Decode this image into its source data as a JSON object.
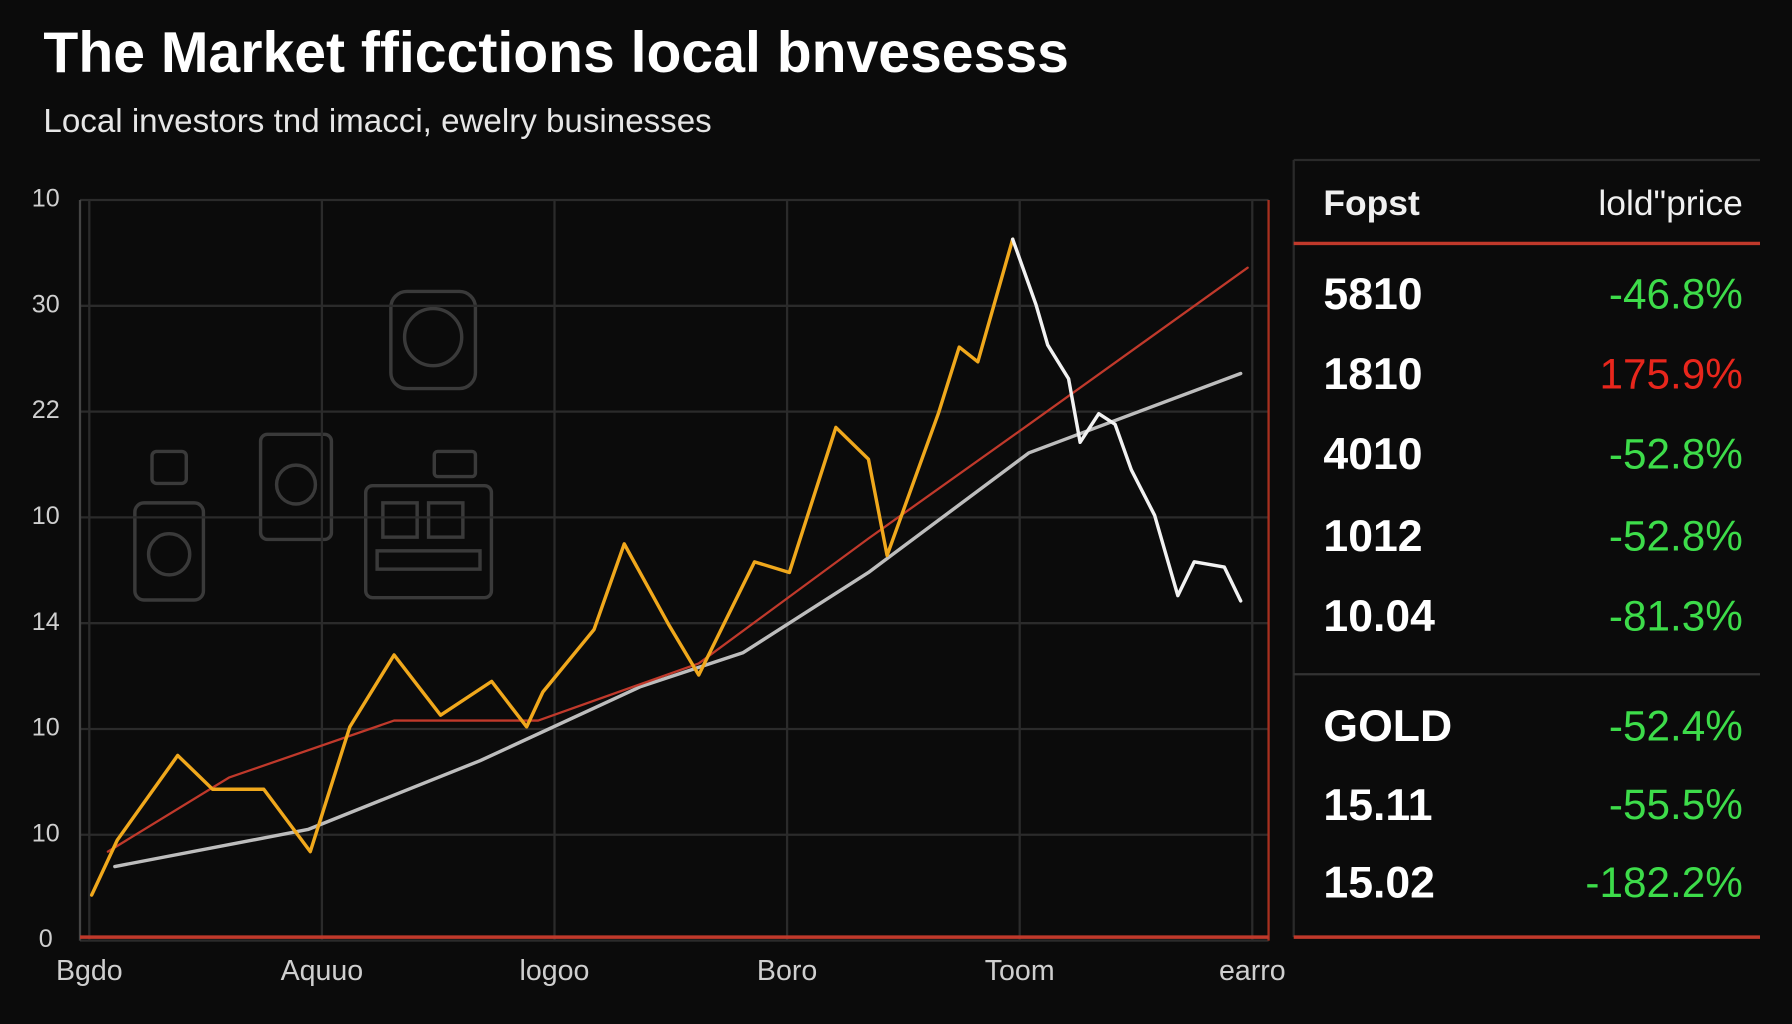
{
  "chart_data": {
    "type": "line",
    "title": "The Market fficctions local bnvesesss",
    "subtitle": "Local investors tnd imacci, ewelry businesses",
    "xlim": [
      -0.04,
      5.07
    ],
    "ylim": [
      0,
      7
    ],
    "xticks": [
      {
        "value": 0,
        "label": "Bgdo"
      },
      {
        "value": 1,
        "label": "Aquuo"
      },
      {
        "value": 2,
        "label": "logoo"
      },
      {
        "value": 3,
        "label": "Boro"
      },
      {
        "value": 4,
        "label": "Toom"
      },
      {
        "value": 5,
        "label": "earro"
      }
    ],
    "yticks": [
      {
        "value": 0,
        "label": "0"
      },
      {
        "value": 1,
        "label": "10"
      },
      {
        "value": 2,
        "label": "10"
      },
      {
        "value": 3,
        "label": "14"
      },
      {
        "value": 4,
        "label": "10"
      },
      {
        "value": 5,
        "label": "22"
      },
      {
        "value": 6,
        "label": "30"
      },
      {
        "value": 7,
        "label": "10"
      }
    ],
    "grid": true,
    "series": [
      {
        "color": "#bdbdbd",
        "width": 3,
        "x": [
          0.11,
          0.94,
          1.68,
          2.37,
          2.81,
          3.35,
          4.04,
          4.95
        ],
        "values": [
          0.7,
          1.05,
          1.7,
          2.4,
          2.72,
          3.48,
          4.61,
          5.36
        ]
      },
      {
        "color": "#c0392b",
        "width": 2,
        "x": [
          0.08,
          0.6,
          1.31,
          1.93,
          2.62,
          3.35,
          4.04,
          4.98
        ],
        "values": [
          0.84,
          1.54,
          2.08,
          2.08,
          2.62,
          3.8,
          4.88,
          6.36
        ]
      },
      {
        "color": "#f0a81c",
        "width": 3,
        "x": [
          0.01,
          0.12,
          0.38,
          0.53,
          0.75,
          0.95,
          1.12,
          1.31,
          1.51,
          1.73,
          1.88,
          1.95,
          2.17,
          2.3,
          2.49,
          2.62,
          2.86,
          3.01,
          3.21,
          3.35,
          3.43,
          3.65,
          3.74,
          3.82,
          3.97
        ],
        "values": [
          0.43,
          0.95,
          1.75,
          1.43,
          1.43,
          0.84,
          2.02,
          2.7,
          2.13,
          2.45,
          2.02,
          2.35,
          2.94,
          3.75,
          2.99,
          2.51,
          3.58,
          3.48,
          4.85,
          4.55,
          3.64,
          4.98,
          5.61,
          5.47,
          6.63
        ]
      },
      {
        "color": "#f2f2f2",
        "width": 3,
        "x": [
          3.97,
          4.07,
          4.12,
          4.21,
          4.26,
          4.34,
          4.41,
          4.48,
          4.58,
          4.68,
          4.75,
          4.88,
          4.95
        ],
        "values": [
          6.63,
          6.01,
          5.63,
          5.31,
          4.71,
          4.98,
          4.88,
          4.45,
          4.02,
          3.26,
          3.58,
          3.53,
          3.21
        ]
      }
    ]
  },
  "table": {
    "header": [
      "Fopst",
      "lold\"price"
    ],
    "rows": [
      {
        "label": "5810",
        "change": "-46.8%",
        "color": "#3ddc4a"
      },
      {
        "label": "1810",
        "change": "175.9%",
        "color": "#e8261c"
      },
      {
        "label": "4010",
        "change": "-52.8%",
        "color": "#3ddc4a"
      },
      {
        "label": "1012",
        "change": "-52.8%",
        "color": "#3ddc4a"
      },
      {
        "label": "10.04",
        "change": "-81.3%",
        "color": "#3ddc4a"
      },
      {
        "label": "GOLD",
        "change": "-52.4%",
        "color": "#3ddc4a"
      },
      {
        "label": "15.11",
        "change": "-55.5%",
        "color": "#3ddc4a"
      },
      {
        "label": "15.02",
        "change": "-182.2%",
        "color": "#3ddc4a"
      }
    ]
  }
}
